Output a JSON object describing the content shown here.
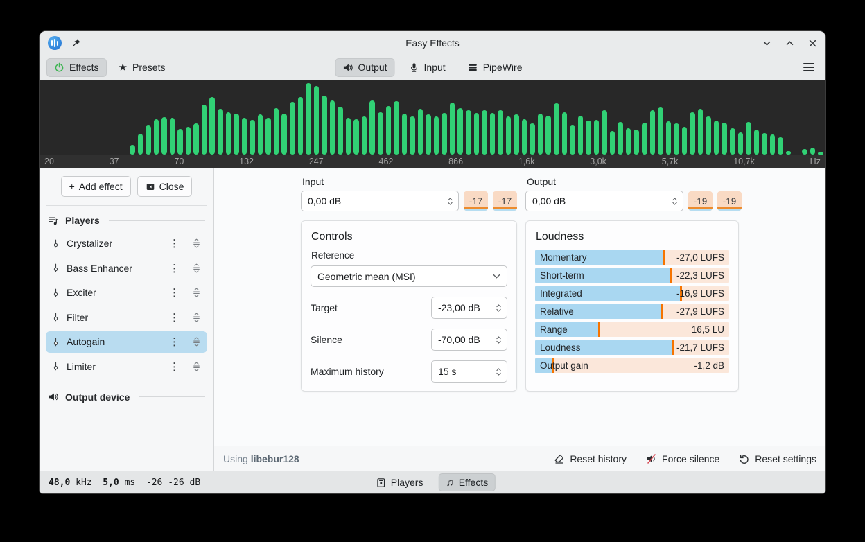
{
  "window": {
    "title": "Easy Effects"
  },
  "toolbar": {
    "effects": "Effects",
    "presets": "Presets",
    "output": "Output",
    "input": "Input",
    "pipewire": "PipeWire"
  },
  "spectrum": {
    "bar_color": "#31d175",
    "background": "#282828",
    "freq_labels": [
      "20",
      "37",
      "70",
      "132",
      "247",
      "462",
      "866",
      "1,6k",
      "3,0k",
      "5,7k",
      "10,7k",
      "Hz"
    ],
    "bars": [
      0,
      0,
      0,
      0,
      0,
      0,
      0,
      0,
      0,
      0,
      0,
      13,
      28,
      40,
      48,
      51,
      50,
      35,
      38,
      42,
      68,
      78,
      62,
      58,
      56,
      50,
      47,
      55,
      50,
      63,
      56,
      72,
      78,
      97,
      93,
      80,
      74,
      65,
      50,
      48,
      52,
      74,
      58,
      66,
      73,
      56,
      52,
      62,
      55,
      52,
      57,
      71,
      63,
      60,
      57,
      60,
      57,
      60,
      52,
      55,
      48,
      42,
      56,
      53,
      70,
      58,
      40,
      53,
      46,
      47,
      60,
      32,
      44,
      36,
      34,
      43,
      60,
      64,
      45,
      42,
      38,
      58,
      62,
      52,
      46,
      43,
      36,
      30,
      44,
      34,
      29,
      27,
      24,
      5,
      0,
      8,
      9,
      3
    ]
  },
  "sidebar": {
    "plus": "+",
    "add_effect": "Add effect",
    "close": "Close",
    "players_header": "Players",
    "output_device_header": "Output device",
    "effects": [
      {
        "label": "Crystalizer",
        "selected": false
      },
      {
        "label": "Bass Enhancer",
        "selected": false
      },
      {
        "label": "Exciter",
        "selected": false
      },
      {
        "label": "Filter",
        "selected": false
      },
      {
        "label": "Autogain",
        "selected": true
      },
      {
        "label": "Limiter",
        "selected": false
      }
    ]
  },
  "io": {
    "input_label": "Input",
    "input_value": "0,00 dB",
    "input_levels": [
      "-17",
      "-17"
    ],
    "output_label": "Output",
    "output_value": "0,00 dB",
    "output_levels": [
      "-19",
      "-19"
    ]
  },
  "controls": {
    "title": "Controls",
    "reference_label": "Reference",
    "reference_value": "Geometric mean (MSI)",
    "rows": [
      {
        "label": "Target",
        "value": "-23,00 dB"
      },
      {
        "label": "Silence",
        "value": "-70,00 dB"
      },
      {
        "label": "Maximum history",
        "value": "15 s"
      }
    ]
  },
  "loudness": {
    "title": "Loudness",
    "fill_color": "#a9d7f1",
    "track_color": "#fbe7da",
    "marker_color": "#f67400",
    "rows": [
      {
        "label": "Momentary",
        "value": "-27,0 LUFS",
        "pct": 66
      },
      {
        "label": "Short-term",
        "value": "-22,3 LUFS",
        "pct": 70
      },
      {
        "label": "Integrated",
        "value": "-16,9 LUFS",
        "pct": 75
      },
      {
        "label": "Relative",
        "value": "-27,9 LUFS",
        "pct": 65
      },
      {
        "label": "Range",
        "value": "16,5 LU",
        "pct": 33
      },
      {
        "label": "Loudness",
        "value": "-21,7 LUFS",
        "pct": 71
      },
      {
        "label": "Output gain",
        "value": "-1,2 dB",
        "pct": 9
      }
    ]
  },
  "footer": {
    "using_prefix": "Using",
    "library": "libebur128",
    "reset_history": "Reset history",
    "force_silence": "Force silence",
    "reset_settings": "Reset settings"
  },
  "statusbar": {
    "sample_rate": "48,0",
    "sample_rate_unit": "kHz",
    "latency": "5,0",
    "latency_unit": "ms",
    "meter": "-26 -26 dB",
    "players_tab": "Players",
    "effects_tab": "Effects"
  }
}
